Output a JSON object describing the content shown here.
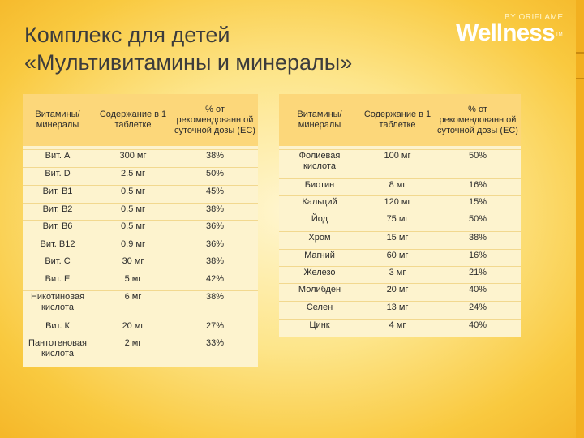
{
  "title": {
    "line1": "Комплекс для детей",
    "line2": "«Мультивитамины и минералы»"
  },
  "logo": {
    "by": "BY ORIFLAME",
    "word": "Wellness",
    "tm": "TM"
  },
  "left_table": {
    "headers": [
      "Витамины/ минералы",
      "Содержание в 1 таблетке",
      "% от рекомендованн ой суточной дозы (ЕС)"
    ],
    "rows": [
      [
        "Вит. А",
        "300 мг",
        "38%"
      ],
      [
        "Вит. D",
        "2.5 мг",
        "50%"
      ],
      [
        "Вит. В1",
        "0.5 мг",
        "45%"
      ],
      [
        "Вит. В2",
        "0.5 мг",
        "38%"
      ],
      [
        "Вит. В6",
        "0.5 мг",
        "36%"
      ],
      [
        "Вит. В12",
        "0.9 мг",
        "36%"
      ],
      [
        "Вит. С",
        "30 мг",
        "38%"
      ],
      [
        "Вит. Е",
        "5 мг",
        "42%"
      ],
      [
        "Никотиновая кислота",
        "6 мг",
        "38%"
      ],
      [
        "Вит. К",
        "20 мг",
        "27%"
      ],
      [
        "Пантотеновая кислота",
        "2 мг",
        "33%"
      ]
    ]
  },
  "right_table": {
    "headers": [
      "Витамины/ минералы",
      "Содержание в 1 таблетке",
      "% от рекомендованн ой суточной дозы (ЕС)"
    ],
    "rows": [
      [
        "Фолиевая кислота",
        "100 мг",
        "50%"
      ],
      [
        "Биотин",
        "8 мг",
        "16%"
      ],
      [
        "Кальций",
        "120 мг",
        "15%"
      ],
      [
        "Йод",
        "75 мг",
        "50%"
      ],
      [
        "Хром",
        "15 мг",
        "38%"
      ],
      [
        "Магний",
        "60 мг",
        "16%"
      ],
      [
        "Железо",
        "3 мг",
        "21%"
      ],
      [
        "Молибден",
        "20 мг",
        "40%"
      ],
      [
        "Селен",
        "13 мг",
        "24%"
      ],
      [
        "Цинк",
        "4 мг",
        "40%"
      ]
    ]
  }
}
